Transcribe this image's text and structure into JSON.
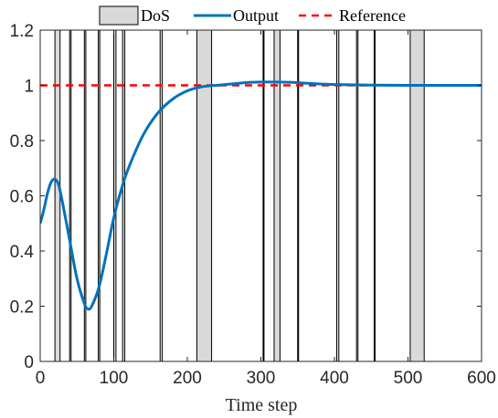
{
  "chart_data": {
    "type": "line",
    "title": "",
    "xlabel": "Time step",
    "ylabel": "",
    "xlim": [
      0,
      600
    ],
    "ylim": [
      0,
      1.2
    ],
    "xticks": [
      "0",
      "100",
      "200",
      "300",
      "400",
      "500",
      "600"
    ],
    "yticks": [
      "0",
      "0.2",
      "0.4",
      "0.6",
      "0.8",
      "1",
      "1.2"
    ],
    "grid": false,
    "legend": {
      "position": "top",
      "entries": [
        "DoS",
        "Output",
        "Reference"
      ]
    },
    "colors": {
      "output": "#0072BD",
      "reference": "#FF0000",
      "dos_fill": "#D9D9D9"
    },
    "series": [
      {
        "name": "Output",
        "x": [
          0,
          5,
          10,
          15,
          20,
          25,
          30,
          40,
          50,
          60,
          65,
          70,
          80,
          90,
          100,
          110,
          120,
          140,
          160,
          180,
          200,
          220,
          240,
          260,
          280,
          300,
          320,
          340,
          360,
          380,
          400,
          450,
          500,
          550,
          600
        ],
        "y": [
          0.5,
          0.55,
          0.61,
          0.65,
          0.66,
          0.64,
          0.58,
          0.44,
          0.3,
          0.21,
          0.19,
          0.2,
          0.27,
          0.39,
          0.52,
          0.62,
          0.7,
          0.82,
          0.9,
          0.95,
          0.98,
          0.995,
          1.0,
          1.005,
          1.01,
          1.012,
          1.012,
          1.011,
          1.008,
          1.005,
          1.003,
          1.001,
          1.0,
          1.0,
          1.0
        ]
      },
      {
        "name": "Reference",
        "x": [
          0,
          600
        ],
        "y": [
          1,
          1
        ]
      }
    ],
    "dos_intervals": [
      [
        20,
        27
      ],
      [
        40,
        42
      ],
      [
        60,
        62
      ],
      [
        79,
        81
      ],
      [
        100,
        103
      ],
      [
        112,
        115
      ],
      [
        163,
        166
      ],
      [
        213,
        233
      ],
      [
        303,
        304
      ],
      [
        318,
        326
      ],
      [
        350,
        351
      ],
      [
        403,
        406
      ],
      [
        430,
        432
      ],
      [
        454,
        455
      ],
      [
        503,
        522
      ]
    ]
  }
}
